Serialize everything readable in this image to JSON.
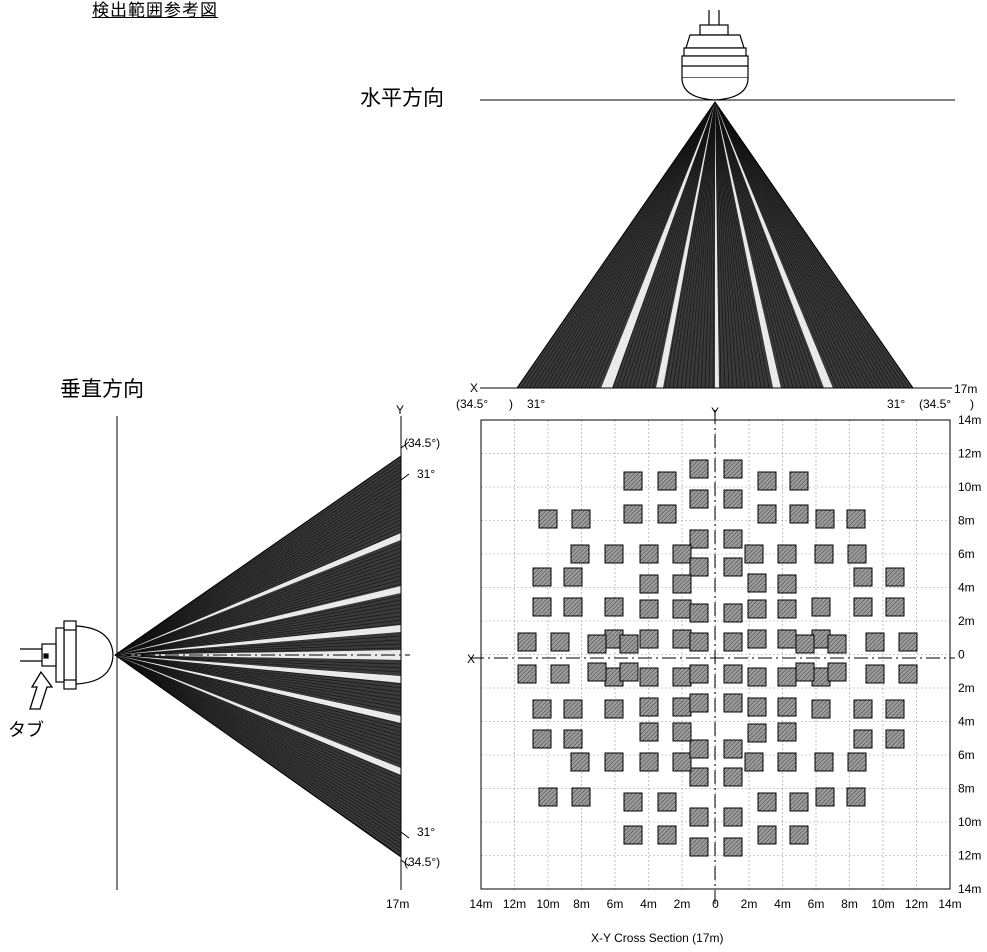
{
  "title": "検出範囲参考図",
  "horizontal_label": "水平方向",
  "vertical_label": "垂直方向",
  "tab_label": "タブ",
  "section_caption": "X-Y Cross Section (17m)",
  "distance_label": "17m",
  "axis_x": "X",
  "axis_y": "Y",
  "angle_inner": "31°",
  "angle_outer": "(34.5°)",
  "angle_outer_left": "(34.5°",
  "angle_outer_right": "(34.5°",
  "paren_close": ")",
  "x_ticks": [
    "14m",
    "12m",
    "10m",
    "8m",
    "6m",
    "4m",
    "2m",
    "0",
    "2m",
    "4m",
    "6m",
    "8m",
    "10m",
    "12m",
    "14m"
  ],
  "y_ticks": [
    "14m",
    "12m",
    "10m",
    "8m",
    "6m",
    "4m",
    "2m",
    "0",
    "2m",
    "4m",
    "6m",
    "8m",
    "10m",
    "12m",
    "14m"
  ],
  "colors": {
    "beam": "#3a3a3a",
    "grid": "#9a9a9a",
    "zone": "#8f8f8f",
    "line": "#000000"
  }
}
